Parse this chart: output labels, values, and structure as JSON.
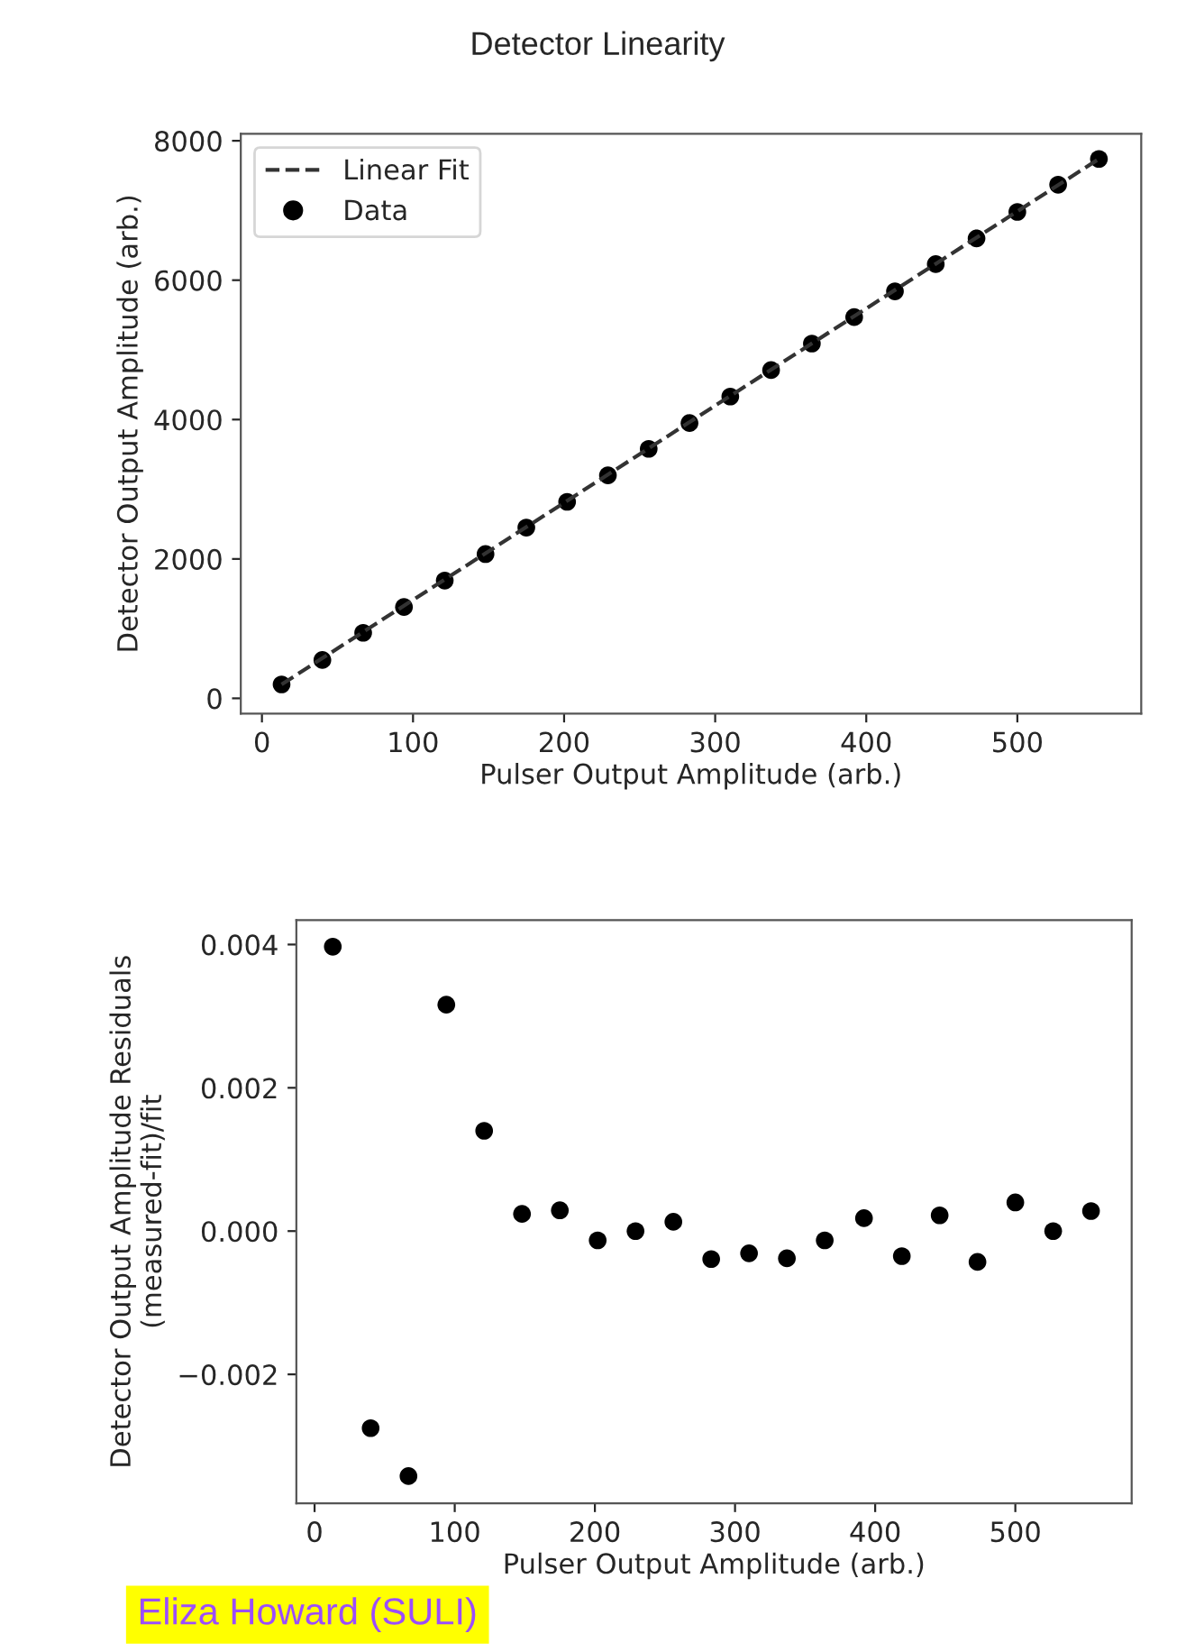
{
  "chart_data": [
    {
      "type": "scatter",
      "title": "Detector Linearity",
      "xlabel": "Pulser Output Amplitude (arb.)",
      "ylabel": "Detector Output Amplitude (arb.)",
      "xlim": [
        -14,
        582
      ],
      "ylim": [
        -220,
        8100
      ],
      "xticks": [
        0,
        100,
        200,
        300,
        400,
        500
      ],
      "yticks": [
        0,
        2000,
        4000,
        6000,
        8000
      ],
      "grid": false,
      "legend": "top left",
      "series": [
        {
          "name": "Linear Fit",
          "type": "line",
          "line_style": "dashed",
          "marker": "none",
          "color": "#333333",
          "x": [
            13,
            554
          ],
          "values": [
            200,
            7740
          ]
        },
        {
          "name": "Data",
          "marker": "circle",
          "color": "#000000",
          "x": [
            13,
            40,
            67,
            94,
            121,
            148,
            175,
            202,
            229,
            256,
            283,
            310,
            337,
            364,
            392,
            419,
            446,
            473,
            500,
            527,
            554
          ],
          "values": [
            200,
            550,
            940,
            1310,
            1690,
            2070,
            2450,
            2820,
            3200,
            3580,
            3950,
            4330,
            4710,
            5090,
            5470,
            5840,
            6230,
            6600,
            6980,
            7370,
            7740
          ]
        }
      ]
    },
    {
      "type": "scatter",
      "xlabel": "Pulser Output Amplitude (arb.)",
      "ylabel": "Detector Output Amplitude Residuals\n(measured-fit)/fit",
      "xlim": [
        -13,
        583
      ],
      "ylim": [
        -0.0038,
        0.00434
      ],
      "xticks": [
        0,
        100,
        200,
        300,
        400,
        500
      ],
      "yticks": [
        {
          "value": -0.002,
          "label": "−0.002"
        },
        {
          "value": 0.0,
          "label": "0.000"
        },
        {
          "value": 0.002,
          "label": "0.002"
        },
        {
          "value": 0.004,
          "label": "0.004"
        }
      ],
      "grid": false,
      "legend": false,
      "annotations": [
        "Eliza Howard (SULI)"
      ],
      "series": [
        {
          "marker": "circle",
          "color": "#000000",
          "x": [
            13,
            40,
            67,
            94,
            121,
            148,
            175,
            202,
            229,
            256,
            283,
            310,
            337,
            364,
            392,
            419,
            446,
            473,
            500,
            527,
            554
          ],
          "values": [
            0.00397,
            -0.00275,
            -0.00342,
            0.00316,
            0.0014,
            0.00024,
            0.00029,
            -0.00013,
            0.0,
            0.00013,
            -0.00039,
            -0.00031,
            -0.00038,
            -0.00013,
            0.00018,
            -0.00035,
            0.00022,
            -0.00043,
            0.0004,
            0.0,
            0.00028
          ]
        }
      ]
    }
  ]
}
